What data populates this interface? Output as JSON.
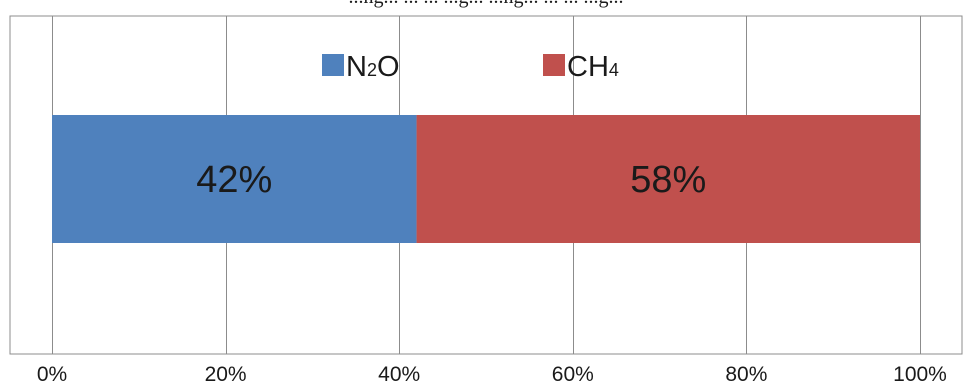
{
  "chart_data": {
    "type": "bar",
    "orientation": "horizontal",
    "stacked": "100%",
    "categories": [
      ""
    ],
    "series": [
      {
        "name": "N2O",
        "label_main": "N",
        "label_sub": "2",
        "label_tail": "O",
        "values": [
          42
        ],
        "data_label": "42%",
        "color": "#4f81bd"
      },
      {
        "name": "CH4",
        "label_main": "CH",
        "label_sub": "4",
        "label_tail": "",
        "values": [
          58
        ],
        "data_label": "58%",
        "color": "#c0504d"
      }
    ],
    "xlim": [
      0,
      100
    ],
    "x_ticks": [
      {
        "value": 0,
        "label": "0%"
      },
      {
        "value": 20,
        "label": "20%"
      },
      {
        "value": 40,
        "label": "40%"
      },
      {
        "value": 60,
        "label": "60%"
      },
      {
        "value": 80,
        "label": "80%"
      },
      {
        "value": 100,
        "label": "100%"
      }
    ],
    "grid": true,
    "legend_position": "top-center",
    "top_text": "...ng... ... ... ...g... ...ng... ... ... ...g...",
    "colors": {
      "gridline": "#8c8c8c",
      "border": "#8c8c8c",
      "text": "#1a1a1a"
    }
  }
}
